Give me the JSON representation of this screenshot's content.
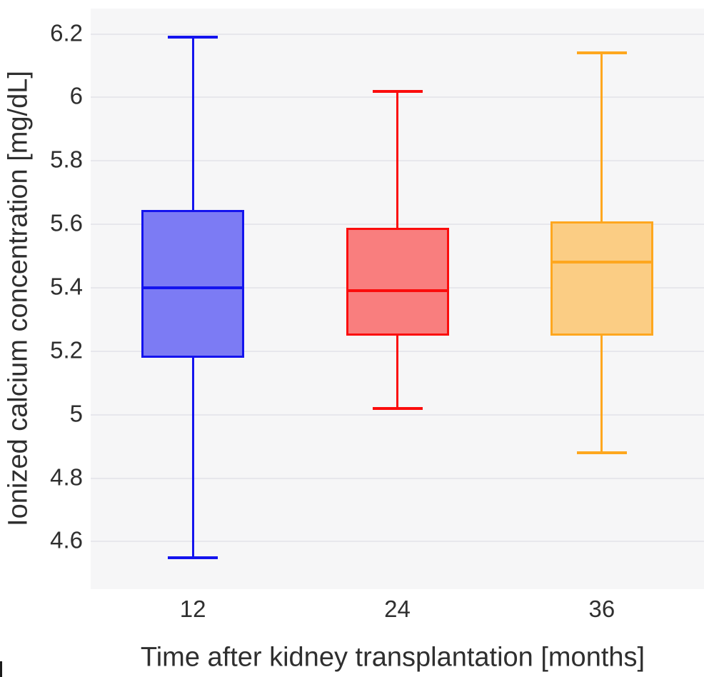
{
  "chart_data": {
    "type": "box",
    "title": "",
    "xlabel": "Time after kidney transplantation [months]",
    "ylabel": "Ionized calcium concentration [mg/dL]",
    "categories": [
      "12",
      "24",
      "36"
    ],
    "ylim": [
      4.45,
      6.28
    ],
    "grid": true,
    "legend": "none",
    "y_ticks": [
      {
        "value": 6.2,
        "label": "6.2"
      },
      {
        "value": 6.0,
        "label": "6"
      },
      {
        "value": 5.8,
        "label": "5.8"
      },
      {
        "value": 5.6,
        "label": "5.6"
      },
      {
        "value": 5.4,
        "label": "5.4"
      },
      {
        "value": 5.2,
        "label": "5.2"
      },
      {
        "value": 5.0,
        "label": "5"
      },
      {
        "value": 4.8,
        "label": "4.8"
      },
      {
        "value": 4.6,
        "label": "4.6"
      }
    ],
    "series": [
      {
        "name": "12",
        "min": 4.55,
        "q1": 5.18,
        "median": 5.4,
        "q3": 5.645,
        "max": 6.19,
        "line_color": "#1414ee",
        "fill_color": "#7c7bf4"
      },
      {
        "name": "24",
        "min": 5.02,
        "q1": 5.25,
        "median": 5.39,
        "q3": 5.59,
        "max": 6.02,
        "line_color": "#fb0d0d",
        "fill_color": "#f97e7e"
      },
      {
        "name": "36",
        "min": 4.88,
        "q1": 5.25,
        "median": 5.48,
        "q3": 5.61,
        "max": 6.14,
        "line_color": "#fea71f",
        "fill_color": "#fbcd84"
      }
    ],
    "colors": {
      "plot_bg": "#f6f6f7",
      "gridline": "#e7e7ec",
      "text": "#2f2f2f"
    }
  }
}
